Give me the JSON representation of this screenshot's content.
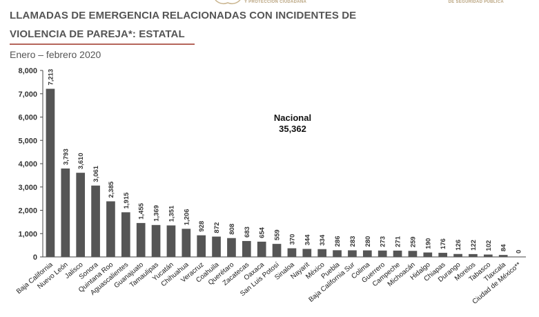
{
  "header": {
    "left_text": "Y PROTECCIÓN CIUDADANA",
    "right_text": "DE SEGURIDAD PÚBLICA"
  },
  "colors": {
    "bar": "#555555",
    "accent": "#b5645a",
    "title": "#555555",
    "header": "#b8a27c"
  },
  "chart_data": {
    "type": "bar",
    "title_line1": "LLAMADAS DE EMERGENCIA RELACIONADAS CON INCIDENTES DE",
    "title_line2": "VIOLENCIA DE PAREJA*: ESTATAL",
    "subtitle": "Enero – febrero 2020",
    "annotation_label": "Nacional",
    "annotation_value": "35,362",
    "ylim": [
      0,
      8000
    ],
    "yticks": [
      "0",
      "1,000",
      "2,000",
      "3,000",
      "4,000",
      "5,000",
      "6,000",
      "7,000",
      "8,000"
    ],
    "grid": false,
    "categories": [
      "Baja California",
      "Nuevo León",
      "Jalisco",
      "Sonora",
      "Quintana Roo",
      "Aguascalientes",
      "Guanajuato",
      "Tamaulipas",
      "Yucatán",
      "Chihuahua",
      "Veracruz",
      "Coahuila",
      "Querétaro",
      "Zacatecas",
      "Oaxaca",
      "San Luis Potosí",
      "Sinaloa",
      "Nayarit",
      "México",
      "Puebla",
      "Baja California Sur",
      "Colima",
      "Guerrero",
      "Campeche",
      "Michoacán",
      "Hidalgo",
      "Chiapas",
      "Durango",
      "Morelos",
      "Tabasco",
      "Tlaxcala",
      "Ciudad de México**"
    ],
    "values": [
      7213,
      3793,
      3610,
      3061,
      2385,
      1915,
      1455,
      1369,
      1351,
      1206,
      928,
      872,
      808,
      683,
      654,
      559,
      370,
      344,
      334,
      286,
      283,
      280,
      273,
      271,
      259,
      190,
      176,
      126,
      122,
      102,
      84,
      0
    ],
    "value_labels": [
      "7,213",
      "3,793",
      "3,610",
      "3,061",
      "2,385",
      "1,915",
      "1,455",
      "1,369",
      "1,351",
      "1,206",
      "928",
      "872",
      "808",
      "683",
      "654",
      "559",
      "370",
      "344",
      "334",
      "286",
      "283",
      "280",
      "273",
      "271",
      "259",
      "190",
      "176",
      "126",
      "122",
      "102",
      "84",
      "0"
    ]
  }
}
